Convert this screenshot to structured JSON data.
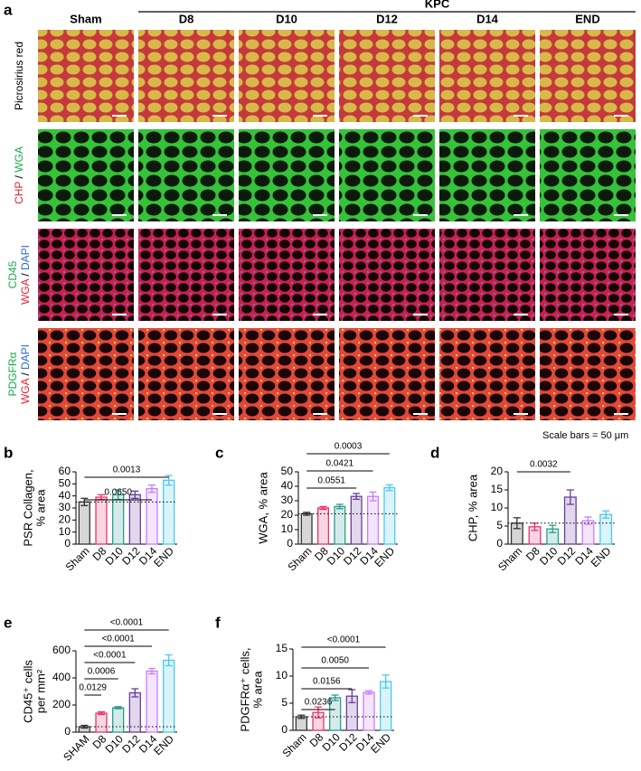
{
  "figure": {
    "panel": "a",
    "group": "KPC",
    "columns": [
      "Sham",
      "D8",
      "D10",
      "D12",
      "D14",
      "END"
    ],
    "row_labels": [
      [
        [
          {
            "text": "Picrosirius red",
            "color": "#000000"
          }
        ]
      ],
      [
        [
          {
            "text": "CHP",
            "color": "#e8202a"
          },
          {
            "text": " / ",
            "color": "#000000"
          },
          {
            "text": "WGA",
            "color": "#1aa84a"
          }
        ]
      ],
      [
        [
          {
            "text": "CD45",
            "color": "#1aa84a"
          }
        ],
        [
          {
            "text": "WGA",
            "color": "#e8202a"
          },
          {
            "text": " / ",
            "color": "#000000"
          },
          {
            "text": "DAPI",
            "color": "#2b6cd8"
          }
        ]
      ],
      [
        [
          {
            "text": "PDGFRα",
            "color": "#1aa84a"
          }
        ],
        [
          {
            "text": "WGA",
            "color": "#e8202a"
          },
          {
            "text": " / ",
            "color": "#000000"
          },
          {
            "text": "DAPI",
            "color": "#2b6cd8"
          }
        ]
      ]
    ],
    "note": "Scale bars = 50 μm"
  },
  "chart_data": [
    {
      "type": "bar",
      "panel": "b",
      "ylabel": [
        "PSR Collagen,",
        "% area"
      ],
      "categories": [
        "Sham",
        "D8",
        "D10",
        "D12",
        "D14",
        "END"
      ],
      "values": [
        35,
        39,
        41,
        41,
        46,
        53
      ],
      "errors": [
        3,
        2,
        4,
        3,
        3,
        4
      ],
      "colors": [
        "#333333",
        "#e8336e",
        "#2a9d8f",
        "#6a3d9a",
        "#c77dff",
        "#4cc9f0"
      ],
      "ylim": [
        0,
        60
      ],
      "yticks": [
        0,
        10,
        20,
        30,
        40,
        50,
        60
      ],
      "comparisons": [
        {
          "groups": [
            "Sham",
            "D14"
          ],
          "label": "0.0650"
        },
        {
          "groups": [
            "Sham",
            "END"
          ],
          "label": "0.0013"
        }
      ]
    },
    {
      "type": "bar",
      "panel": "c",
      "ylabel": [
        "WGA, % area"
      ],
      "categories": [
        "Sham",
        "D8",
        "D10",
        "D12",
        "D14",
        "END"
      ],
      "values": [
        21,
        25,
        26,
        33,
        33,
        39
      ],
      "errors": [
        1,
        1,
        1.5,
        2,
        3,
        2
      ],
      "colors": [
        "#333333",
        "#e8336e",
        "#2a9d8f",
        "#6a3d9a",
        "#c77dff",
        "#4cc9f0"
      ],
      "ylim": [
        0,
        50
      ],
      "yticks": [
        0,
        10,
        20,
        30,
        40,
        50
      ],
      "comparisons": [
        {
          "groups": [
            "Sham",
            "D12"
          ],
          "label": "0.0551"
        },
        {
          "groups": [
            "Sham",
            "D14"
          ],
          "label": "0.0421"
        },
        {
          "groups": [
            "Sham",
            "END"
          ],
          "label": "0.0003"
        }
      ]
    },
    {
      "type": "bar",
      "panel": "d",
      "ylabel": [
        "CHP, % area"
      ],
      "categories": [
        "Sham",
        "D8",
        "D10",
        "D12",
        "D14",
        "END"
      ],
      "values": [
        5.8,
        4.8,
        4.2,
        13,
        6.5,
        8.2
      ],
      "errors": [
        1.5,
        1,
        1,
        2,
        1,
        1
      ],
      "colors": [
        "#333333",
        "#e8336e",
        "#2a9d8f",
        "#6a3d9a",
        "#c77dff",
        "#4cc9f0"
      ],
      "ylim": [
        0,
        20
      ],
      "yticks": [
        0,
        5,
        10,
        15,
        20
      ],
      "comparisons": [
        {
          "groups": [
            "Sham",
            "D12"
          ],
          "label": "0.0032"
        }
      ]
    },
    {
      "type": "bar",
      "panel": "e",
      "ylabel": [
        "CD45⁺ cells",
        "per mm²"
      ],
      "categories": [
        "SHAM",
        "D8",
        "D10",
        "D12",
        "D14",
        "END"
      ],
      "values": [
        40,
        140,
        180,
        290,
        450,
        530
      ],
      "errors": [
        10,
        10,
        8,
        30,
        20,
        40
      ],
      "colors": [
        "#333333",
        "#e8336e",
        "#2a9d8f",
        "#6a3d9a",
        "#c77dff",
        "#4cc9f0"
      ],
      "ylim": [
        0,
        600
      ],
      "yticks": [
        0,
        200,
        400,
        600
      ],
      "comparisons": [
        {
          "groups": [
            "SHAM",
            "D8"
          ],
          "label": "0.0129"
        },
        {
          "groups": [
            "SHAM",
            "D10"
          ],
          "label": "0.0006"
        },
        {
          "groups": [
            "SHAM",
            "D12"
          ],
          "label": "<0.0001"
        },
        {
          "groups": [
            "SHAM",
            "D14"
          ],
          "label": "<0.0001"
        },
        {
          "groups": [
            "SHAM",
            "END"
          ],
          "label": "<0.0001"
        }
      ]
    },
    {
      "type": "bar",
      "panel": "f",
      "ylabel": [
        "PDGFRα⁺ cells,",
        "% area"
      ],
      "categories": [
        "Sham",
        "D8",
        "D10",
        "D12",
        "D14",
        "END"
      ],
      "values": [
        2.5,
        3.3,
        6,
        6.3,
        7,
        9
      ],
      "errors": [
        0.3,
        1,
        0.5,
        1.2,
        0.3,
        1.2
      ],
      "colors": [
        "#333333",
        "#e8336e",
        "#2a9d8f",
        "#6a3d9a",
        "#c77dff",
        "#4cc9f0"
      ],
      "ylim": [
        0,
        15
      ],
      "yticks": [
        0,
        5,
        10,
        15
      ],
      "comparisons": [
        {
          "groups": [
            "Sham",
            "D10"
          ],
          "label": "0.0236"
        },
        {
          "groups": [
            "Sham",
            "D12"
          ],
          "label": "0.0156"
        },
        {
          "groups": [
            "Sham",
            "D14"
          ],
          "label": "0.0050"
        },
        {
          "groups": [
            "Sham",
            "END"
          ],
          "label": "<0.0001"
        }
      ]
    }
  ]
}
